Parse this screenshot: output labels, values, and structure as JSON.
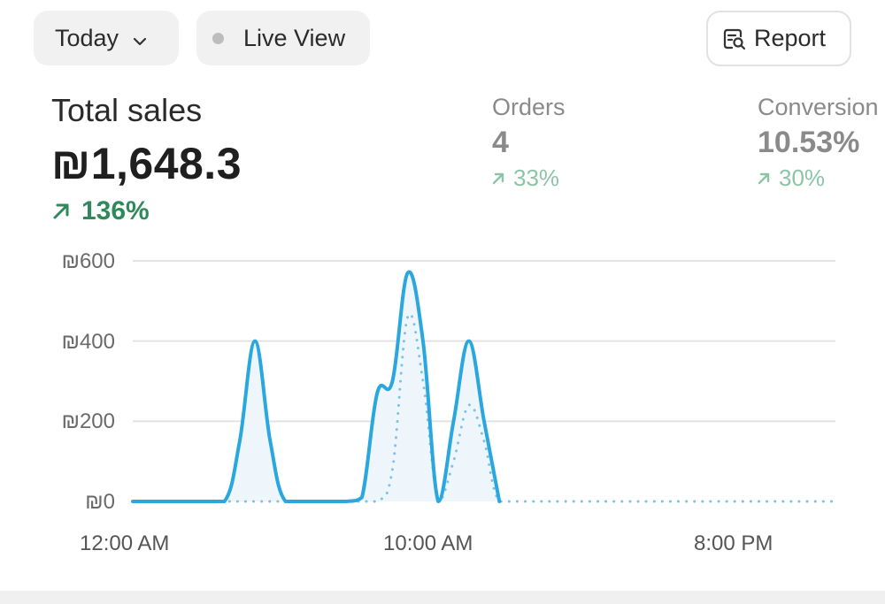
{
  "filters": {
    "period_label": "Today",
    "live_view_label": "Live View"
  },
  "report_button_label": "Report",
  "total_sales": {
    "label": "Total sales",
    "value": "₪1,648.3",
    "delta": "136%"
  },
  "orders": {
    "label": "Orders",
    "value": "4",
    "delta": "33%"
  },
  "conversion": {
    "label": "Conversion",
    "value": "10.53%",
    "delta": "30%"
  },
  "colors": {
    "line": "#2ba7e0",
    "positive_strong": "#2e8a5a",
    "positive_muted": "#8cc4a8",
    "grid": "#e3e3e3"
  },
  "chart_data": {
    "type": "line",
    "x_ticks": [
      "12:00 AM",
      "10:00 AM",
      "8:00 PM"
    ],
    "y_ticks": [
      "₪0",
      "₪200",
      "₪400",
      "₪600"
    ],
    "ylim": [
      0,
      600
    ],
    "xlim": [
      0,
      23
    ],
    "grid": true,
    "series": [
      {
        "style": "solid",
        "x": [
          0,
          1,
          2,
          3,
          3.5,
          4,
          4.5,
          5,
          6,
          7,
          7.5,
          8,
          8.5,
          9,
          9.5,
          10,
          10.5,
          11,
          11.5,
          12
        ],
        "y": [
          0,
          0,
          0,
          0,
          150,
          400,
          150,
          0,
          0,
          0,
          10,
          270,
          300,
          570,
          400,
          0,
          200,
          400,
          200,
          0
        ]
      },
      {
        "style": "dotted",
        "x": [
          0,
          1,
          2,
          3,
          4,
          5,
          6,
          7,
          8,
          8.5,
          9,
          9.5,
          10,
          10.5,
          11,
          11.5,
          12,
          13,
          14,
          15,
          16,
          17,
          18,
          19,
          20,
          21,
          22,
          23
        ],
        "y": [
          0,
          0,
          0,
          0,
          0,
          0,
          0,
          0,
          0,
          80,
          460,
          300,
          0,
          100,
          240,
          150,
          0,
          0,
          0,
          0,
          0,
          0,
          0,
          0,
          0,
          0,
          0,
          0
        ]
      }
    ]
  }
}
